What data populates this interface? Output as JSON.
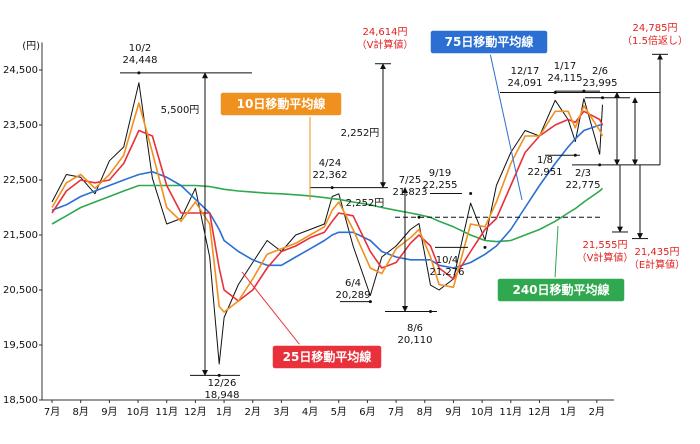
{
  "chart_data": {
    "type": "line",
    "y_unit": "(円)",
    "xlim": [
      -0.35,
      19.6
    ],
    "xticks": [
      {
        "value": 0,
        "label": "7月"
      },
      {
        "value": 1,
        "label": "8月"
      },
      {
        "value": 2,
        "label": "9月"
      },
      {
        "value": 3,
        "label": "10月"
      },
      {
        "value": 4,
        "label": "11月"
      },
      {
        "value": 5,
        "label": "12月"
      },
      {
        "value": 6,
        "label": "1月"
      },
      {
        "value": 7,
        "label": "2月"
      },
      {
        "value": 8,
        "label": "3月"
      },
      {
        "value": 9,
        "label": "4月"
      },
      {
        "value": 10,
        "label": "5月"
      },
      {
        "value": 11,
        "label": "6月"
      },
      {
        "value": 12,
        "label": "7月"
      },
      {
        "value": 13,
        "label": "8月"
      },
      {
        "value": 14,
        "label": "9月"
      },
      {
        "value": 15,
        "label": "10月"
      },
      {
        "value": 16,
        "label": "11月"
      },
      {
        "value": 17,
        "label": "12月"
      },
      {
        "value": 18,
        "label": "1月"
      },
      {
        "value": 19,
        "label": "2月"
      }
    ],
    "ylim": [
      18500,
      25000
    ],
    "yticks": [
      {
        "value": 18500,
        "label": "18,500"
      },
      {
        "value": 19500,
        "label": "19,500"
      },
      {
        "value": 20500,
        "label": "20,500"
      },
      {
        "value": 21500,
        "label": "21,500"
      },
      {
        "value": 22500,
        "label": "22,500"
      },
      {
        "value": 23500,
        "label": "23,500"
      },
      {
        "value": 24500,
        "label": "24,500"
      }
    ],
    "x": [
      0,
      0.5,
      1,
      1.5,
      2,
      2.5,
      3.03,
      3.5,
      4,
      4.5,
      5,
      5.5,
      5.83,
      6,
      6.5,
      7,
      7.5,
      8,
      8.5,
      9,
      9.5,
      9.77,
      10,
      10.5,
      11.1,
      11.5,
      12,
      12.5,
      12.8,
      13.2,
      13.5,
      14,
      14.6,
      15.1,
      15.5,
      16,
      16.5,
      17,
      17.55,
      18,
      18.25,
      18.55,
      19.1,
      19.2
    ],
    "series": [
      {
        "color": "#111111",
        "values": [
          22100,
          22600,
          22550,
          22250,
          22850,
          23100,
          24270,
          22530,
          21700,
          21800,
          22350,
          21100,
          19155,
          20000,
          20600,
          21000,
          21400,
          21200,
          21500,
          21600,
          21700,
          22200,
          22250,
          21300,
          20400,
          21100,
          21300,
          21600,
          21710,
          20590,
          20500,
          20700,
          22080,
          21410,
          22400,
          23000,
          23400,
          23300,
          23950,
          23600,
          23200,
          23980,
          22970,
          23870
        ]
      },
      {
        "name": "10日移動平均線",
        "color": "#f0901e",
        "values": [
          22000,
          22450,
          22600,
          22350,
          22600,
          22950,
          23900,
          23000,
          22000,
          21750,
          22100,
          21700,
          20200,
          20100,
          20300,
          20700,
          21150,
          21250,
          21350,
          21500,
          21650,
          21950,
          22100,
          21600,
          20900,
          20800,
          21250,
          21450,
          21600,
          21100,
          20600,
          20550,
          21700,
          21650,
          22100,
          22800,
          23300,
          23300,
          23750,
          23750,
          23450,
          23850,
          23400,
          23300
        ]
      },
      {
        "name": "25日移動平均線",
        "color": "#e8313a",
        "values": [
          21900,
          22300,
          22500,
          22450,
          22500,
          22800,
          23400,
          23300,
          22400,
          21900,
          21900,
          21900,
          20900,
          20500,
          20300,
          20500,
          20900,
          21200,
          21300,
          21450,
          21550,
          21750,
          21900,
          21850,
          21200,
          20900,
          21000,
          21350,
          21500,
          21300,
          20900,
          20700,
          21200,
          21600,
          21800,
          22400,
          23000,
          23300,
          23500,
          23600,
          23550,
          23750,
          23600,
          23500
        ]
      },
      {
        "name": "75日移動平均線",
        "color": "#2a6fd1",
        "values": [
          21950,
          22050,
          22200,
          22300,
          22400,
          22500,
          22600,
          22650,
          22550,
          22400,
          22150,
          21900,
          21600,
          21400,
          21200,
          21050,
          20950,
          20950,
          21100,
          21250,
          21400,
          21500,
          21550,
          21550,
          21400,
          21200,
          21100,
          21050,
          21050,
          21050,
          20950,
          20900,
          21000,
          21150,
          21300,
          21600,
          22000,
          22400,
          22800,
          23100,
          23250,
          23400,
          23500,
          23500
        ]
      },
      {
        "name": "240日移動平均線",
        "color": "#2fa84f",
        "values": [
          21700,
          21850,
          22000,
          22100,
          22200,
          22300,
          22400,
          22400,
          22400,
          22400,
          22400,
          22380,
          22350,
          22330,
          22300,
          22280,
          22260,
          22250,
          22230,
          22210,
          22180,
          22160,
          22150,
          22100,
          22050,
          22000,
          21950,
          21900,
          21870,
          21820,
          21750,
          21650,
          21500,
          21400,
          21380,
          21400,
          21500,
          21600,
          21750,
          21900,
          21980,
          22100,
          22300,
          22350
        ]
      }
    ],
    "annotations": [
      {
        "date": "10/2",
        "x": 3.03,
        "value": 24448,
        "label": "24,448"
      },
      {
        "date": "12/26",
        "x": 5.83,
        "value": 18948,
        "label": "18,948"
      },
      {
        "date": "4/24",
        "x": 9.77,
        "value": 22362,
        "label": "22,362"
      },
      {
        "date": "6/4",
        "x": 11.1,
        "value": 20289,
        "label": "20,289"
      },
      {
        "date": "7/25",
        "x": 12.8,
        "value": 21823,
        "label": "21,823"
      },
      {
        "date": "8/6",
        "x": 13.2,
        "value": 20110,
        "label": "20,110"
      },
      {
        "date": "9/19",
        "x": 14.6,
        "value": 22255,
        "label": "22,255"
      },
      {
        "date": "10/4",
        "x": 15.1,
        "value": 21276,
        "label": "21,276"
      },
      {
        "date": "12/17",
        "x": 17.55,
        "value": 24091,
        "label": "24,091"
      },
      {
        "date": "1/17",
        "x": 18.55,
        "value": 24115,
        "label": "24,115"
      },
      {
        "date": "1/8",
        "x": 18.25,
        "value": 22951,
        "label": "22,951"
      },
      {
        "date": "2/6",
        "x": 19.2,
        "value": 23995,
        "label": "23,995"
      },
      {
        "date": "2/3",
        "x": 19.1,
        "value": 22775,
        "label": "22,775"
      }
    ],
    "ranges": [
      {
        "label": "5,500円",
        "value": 5500
      },
      {
        "label": "2,252円",
        "value": 2252
      },
      {
        "label": "2,252円",
        "value": 2252
      }
    ],
    "targets": [
      {
        "label": "24,614円",
        "note": "（V計算値）",
        "value": 24614
      },
      {
        "label": "24,785円",
        "note": "（1.5倍返し）",
        "value": 24785
      },
      {
        "label": "21,555円",
        "note": "（V計算値）",
        "value": 21555
      },
      {
        "label": "21,435円",
        "note": "（E計算値）",
        "value": 21435
      }
    ]
  }
}
